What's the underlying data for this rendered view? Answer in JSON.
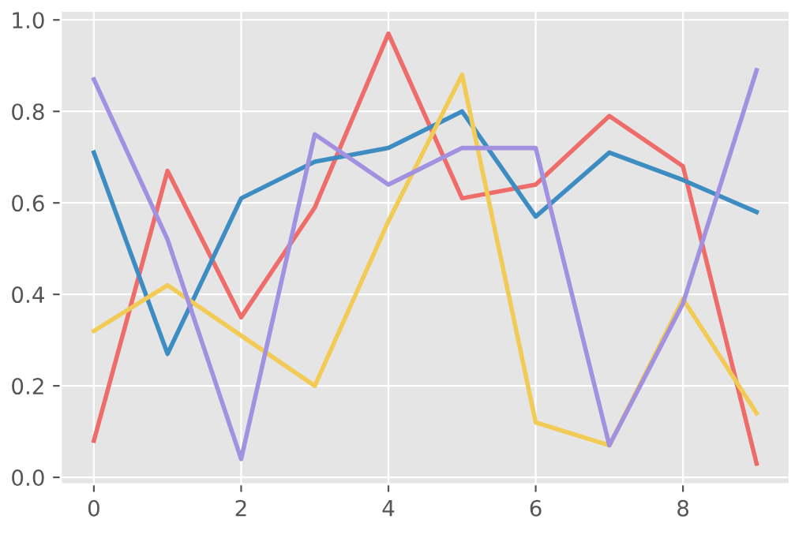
{
  "chart_data": {
    "type": "line",
    "x": [
      0,
      1,
      2,
      3,
      4,
      5,
      6,
      7,
      8,
      9
    ],
    "series": [
      {
        "color": "#ee6c6a",
        "values": [
          0.08,
          0.67,
          0.35,
          0.59,
          0.97,
          0.61,
          0.64,
          0.79,
          0.68,
          0.03
        ]
      },
      {
        "color": "#3d8dc3",
        "values": [
          0.71,
          0.27,
          0.61,
          0.69,
          0.72,
          0.8,
          0.57,
          0.71,
          0.65,
          0.58
        ]
      },
      {
        "color": "#f1cb55",
        "values": [
          0.32,
          0.42,
          0.31,
          0.2,
          0.56,
          0.88,
          0.12,
          0.07,
          0.39,
          0.14
        ]
      },
      {
        "color": "#a290e0",
        "values": [
          0.87,
          0.52,
          0.04,
          0.75,
          0.64,
          0.72,
          0.72,
          0.07,
          0.38,
          0.89
        ]
      }
    ],
    "xlim": [
      -0.45,
      9.45
    ],
    "ylim": [
      -0.015,
      1.02
    ],
    "xticks": [
      0,
      2,
      4,
      6,
      8
    ],
    "yticks": [
      {
        "value": 0,
        "label": "0.0"
      },
      {
        "value": 0.2,
        "label": "0.2"
      },
      {
        "value": 0.4,
        "label": "0.4"
      },
      {
        "value": 0.6,
        "label": "0.6"
      },
      {
        "value": 0.8,
        "label": "0.8"
      },
      {
        "value": 1.0,
        "label": "1.0"
      }
    ],
    "grid": true,
    "marker": "none",
    "line_style": "solid"
  }
}
